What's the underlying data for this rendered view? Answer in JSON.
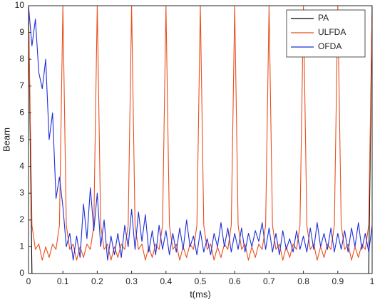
{
  "chart_data": {
    "type": "line",
    "xlabel": "t(ms)",
    "ylabel": "Beam",
    "x": [
      0,
      0.01,
      0.02,
      0.03,
      0.04,
      0.05,
      0.06,
      0.07,
      0.08,
      0.09,
      0.1,
      0.11,
      0.12,
      0.13,
      0.14,
      0.15,
      0.16,
      0.17,
      0.18,
      0.19,
      0.2,
      0.21,
      0.22,
      0.23,
      0.24,
      0.25,
      0.26,
      0.27,
      0.28,
      0.29,
      0.3,
      0.31,
      0.32,
      0.33,
      0.34,
      0.35,
      0.36,
      0.37,
      0.38,
      0.39,
      0.4,
      0.41,
      0.42,
      0.43,
      0.44,
      0.45,
      0.46,
      0.47,
      0.48,
      0.49,
      0.5,
      0.51,
      0.52,
      0.53,
      0.54,
      0.55,
      0.56,
      0.57,
      0.58,
      0.59,
      0.6,
      0.61,
      0.62,
      0.63,
      0.64,
      0.65,
      0.66,
      0.67,
      0.68,
      0.69,
      0.7,
      0.71,
      0.72,
      0.73,
      0.74,
      0.75,
      0.76,
      0.77,
      0.78,
      0.79,
      0.8,
      0.81,
      0.82,
      0.83,
      0.84,
      0.85,
      0.86,
      0.87,
      0.88,
      0.89,
      0.9,
      0.91,
      0.92,
      0.93,
      0.94,
      0.95,
      0.96,
      0.97,
      0.98,
      0.99,
      1
    ],
    "series": [
      {
        "name": "PA",
        "color": "#000000",
        "values": [
          10,
          0,
          0,
          0,
          0,
          0,
          0,
          0,
          0,
          0,
          0,
          0,
          0,
          0,
          0,
          0,
          0,
          0,
          0,
          0,
          0,
          0,
          0,
          0,
          0,
          0,
          0,
          0,
          0,
          0,
          0,
          0,
          0,
          0,
          0,
          0,
          0,
          0,
          0,
          0,
          0,
          0,
          0,
          0,
          0,
          0,
          0,
          0,
          0,
          0,
          0,
          0,
          0,
          0,
          0,
          0,
          0,
          0,
          0,
          0,
          0,
          0,
          0,
          0,
          0,
          0,
          0,
          0,
          0,
          0,
          0,
          0,
          0,
          0,
          0,
          0,
          0,
          0,
          0,
          0,
          0,
          0,
          0,
          0,
          0,
          0,
          0,
          0,
          0,
          0,
          0,
          0,
          0,
          0,
          0,
          0,
          0,
          0,
          0,
          0,
          10
        ]
      },
      {
        "name": "ULFDA",
        "color": "#e8501e",
        "values": [
          10,
          1.8,
          0.9,
          1.1,
          0.5,
          1.0,
          0.6,
          1.1,
          0.9,
          1.8,
          10,
          1.8,
          0.9,
          1.1,
          0.5,
          1.0,
          0.6,
          1.1,
          0.9,
          1.8,
          10,
          1.8,
          0.9,
          1.1,
          0.5,
          1.0,
          0.6,
          1.1,
          0.9,
          1.8,
          10,
          1.8,
          0.9,
          1.1,
          0.5,
          1.0,
          0.6,
          1.1,
          0.9,
          1.8,
          10,
          1.8,
          0.9,
          1.1,
          0.5,
          1.0,
          0.6,
          1.1,
          0.9,
          1.8,
          10,
          1.8,
          0.9,
          1.1,
          0.5,
          1.0,
          0.6,
          1.1,
          0.9,
          1.8,
          10,
          1.8,
          0.9,
          1.1,
          0.5,
          1.0,
          0.6,
          1.1,
          0.9,
          1.8,
          10,
          1.8,
          0.9,
          1.1,
          0.5,
          1.0,
          0.6,
          1.1,
          0.9,
          1.8,
          10,
          1.8,
          0.9,
          1.1,
          0.5,
          1.0,
          0.6,
          1.1,
          0.9,
          1.8,
          10,
          1.8,
          0.9,
          1.1,
          0.5,
          1.0,
          0.6,
          1.1,
          0.9,
          1.8,
          10
        ]
      },
      {
        "name": "OFDA",
        "color": "#1f2fd6",
        "values": [
          10,
          8.5,
          9.5,
          7.5,
          6.9,
          8.0,
          5.0,
          6.0,
          2.8,
          3.6,
          2.5,
          1.0,
          1.5,
          0.5,
          1.4,
          0.6,
          2.6,
          1.3,
          3.2,
          1.6,
          3.0,
          1.0,
          2.0,
          0.5,
          1.4,
          0.7,
          1.5,
          0.6,
          1.8,
          1.0,
          2.4,
          0.9,
          2.3,
          1.2,
          2.2,
          0.8,
          1.6,
          0.7,
          1.8,
          0.9,
          1.6,
          0.7,
          1.5,
          0.8,
          1.7,
          0.9,
          2.0,
          1.0,
          1.4,
          0.7,
          1.6,
          0.8,
          1.3,
          0.7,
          1.5,
          1.0,
          1.9,
          1.0,
          1.7,
          0.8,
          1.5,
          0.9,
          1.7,
          0.8,
          1.5,
          1.0,
          1.6,
          1.2,
          1.9,
          0.9,
          1.7,
          0.8,
          1.5,
          0.7,
          1.6,
          0.9,
          1.3,
          0.8,
          1.6,
          0.9,
          1.4,
          0.8,
          1.7,
          0.9,
          1.9,
          1.0,
          1.5,
          0.9,
          1.7,
          0.8,
          1.5,
          0.9,
          1.6,
          0.8,
          1.7,
          1.0,
          1.9,
          0.9,
          1.5,
          0.8,
          1.8
        ]
      }
    ],
    "xlim": [
      0,
      1
    ],
    "ylim": [
      0,
      10
    ],
    "xticks": [
      0,
      0.1,
      0.2,
      0.3,
      0.4,
      0.5,
      0.6,
      0.7,
      0.8,
      0.9,
      1
    ],
    "yticks": [
      0,
      1,
      2,
      3,
      4,
      5,
      6,
      7,
      8,
      9,
      10
    ],
    "legend": "upper right"
  }
}
